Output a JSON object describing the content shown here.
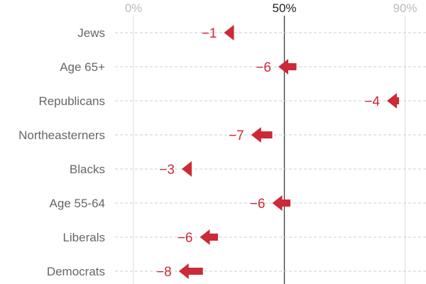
{
  "chart_data": {
    "type": "arrow",
    "x_axis": {
      "unit": "%",
      "ticks": [
        {
          "value": 0,
          "label": "0%"
        },
        {
          "value": 50,
          "label": "50%"
        },
        {
          "value": 90,
          "label": "90%"
        }
      ],
      "highlighted_tick": 50,
      "grid": "dashed horizontal row lines, solid vertical reference line at 50%"
    },
    "categories": [
      {
        "label": "Jews",
        "from": 31,
        "to": 30,
        "change_label": "−1"
      },
      {
        "label": "Age 65+",
        "from": 54,
        "to": 48,
        "change_label": "−6"
      },
      {
        "label": "Republicans",
        "from": 88,
        "to": 84,
        "change_label": "−4"
      },
      {
        "label": "Northeasterners",
        "from": 46,
        "to": 39,
        "change_label": "−7"
      },
      {
        "label": "Blacks",
        "from": 19,
        "to": 16,
        "change_label": "−3"
      },
      {
        "label": "Age 55-64",
        "from": 52,
        "to": 46,
        "change_label": "−6"
      },
      {
        "label": "Liberals",
        "from": 28,
        "to": 22,
        "change_label": "−6"
      },
      {
        "label": "Democrats",
        "from": 23,
        "to": 15,
        "change_label": "−8"
      }
    ]
  },
  "colors": {
    "arrow": "#cc2a36",
    "change_label": "#cc2a36",
    "category_label": "#666666",
    "axis_tick": "#bbbbbb",
    "axis_tick_highlight": "#222222",
    "reference_line": "#444444",
    "grid": "#cccccc"
  }
}
